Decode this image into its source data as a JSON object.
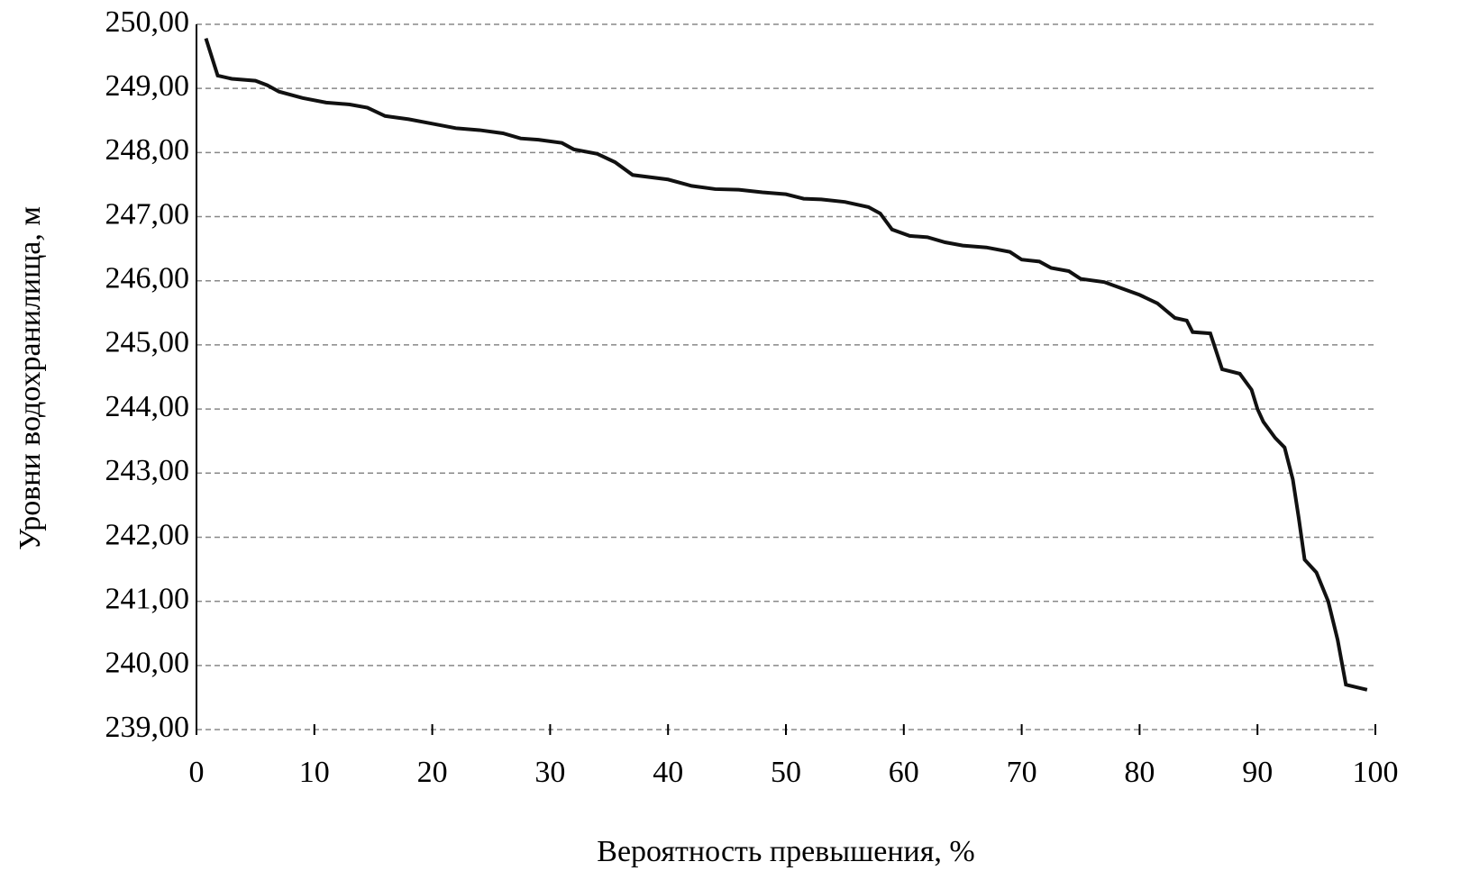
{
  "chart_data": {
    "type": "line",
    "x_label": "Вероятность превышения, %",
    "y_label": "Уровни водохранилища, м",
    "xlim": [
      0,
      100
    ],
    "xticks": [
      0,
      10,
      20,
      30,
      40,
      50,
      60,
      70,
      80,
      90,
      100
    ],
    "ylim": [
      239,
      250
    ],
    "yticks": [
      {
        "value": 239,
        "label": "239,00"
      },
      {
        "value": 240,
        "label": "240,00"
      },
      {
        "value": 241,
        "label": "241,00"
      },
      {
        "value": 242,
        "label": "242,00"
      },
      {
        "value": 243,
        "label": "243,00"
      },
      {
        "value": 244,
        "label": "244,00"
      },
      {
        "value": 245,
        "label": "245,00"
      },
      {
        "value": 246,
        "label": "246,00"
      },
      {
        "value": 247,
        "label": "247,00"
      },
      {
        "value": 248,
        "label": "248,00"
      },
      {
        "value": 249,
        "label": "249,00"
      },
      {
        "value": 250,
        "label": "250,00"
      }
    ],
    "grid": true,
    "series": [
      {
        "color": "#111111",
        "x": [
          0.8,
          1.8,
          3,
          5,
          6,
          7,
          9,
          11,
          13,
          14.5,
          16,
          18,
          20,
          22,
          24,
          26,
          27.5,
          29,
          31,
          32,
          34,
          35.5,
          37,
          40,
          42,
          44,
          46,
          48,
          50,
          51.5,
          53,
          55,
          57,
          58,
          59,
          60.5,
          62,
          63.5,
          65,
          67,
          69,
          70,
          71.5,
          72.5,
          74,
          75,
          77,
          78.5,
          80,
          81.5,
          83,
          84,
          84.5,
          86,
          86.5,
          87,
          88.5,
          89.5,
          90,
          90.5,
          91.5,
          92.3,
          93,
          93.5,
          94,
          95,
          96,
          96.8,
          97.5,
          99.3
        ],
        "values": [
          249.78,
          249.2,
          249.15,
          249.12,
          249.05,
          248.95,
          248.85,
          248.78,
          248.75,
          248.7,
          248.57,
          248.52,
          248.45,
          248.38,
          248.35,
          248.3,
          248.22,
          248.2,
          248.15,
          248.05,
          247.98,
          247.85,
          247.65,
          247.58,
          247.48,
          247.43,
          247.42,
          247.38,
          247.35,
          247.28,
          247.27,
          247.23,
          247.15,
          247.05,
          246.8,
          246.7,
          246.68,
          246.6,
          246.55,
          246.52,
          246.45,
          246.33,
          246.3,
          246.2,
          246.15,
          246.03,
          245.98,
          245.88,
          245.78,
          245.65,
          245.42,
          245.38,
          245.2,
          245.18,
          244.9,
          244.62,
          244.55,
          244.3,
          244.0,
          243.8,
          243.55,
          243.4,
          242.9,
          242.3,
          241.65,
          241.45,
          241.0,
          240.4,
          239.7,
          239.62
        ]
      }
    ]
  }
}
